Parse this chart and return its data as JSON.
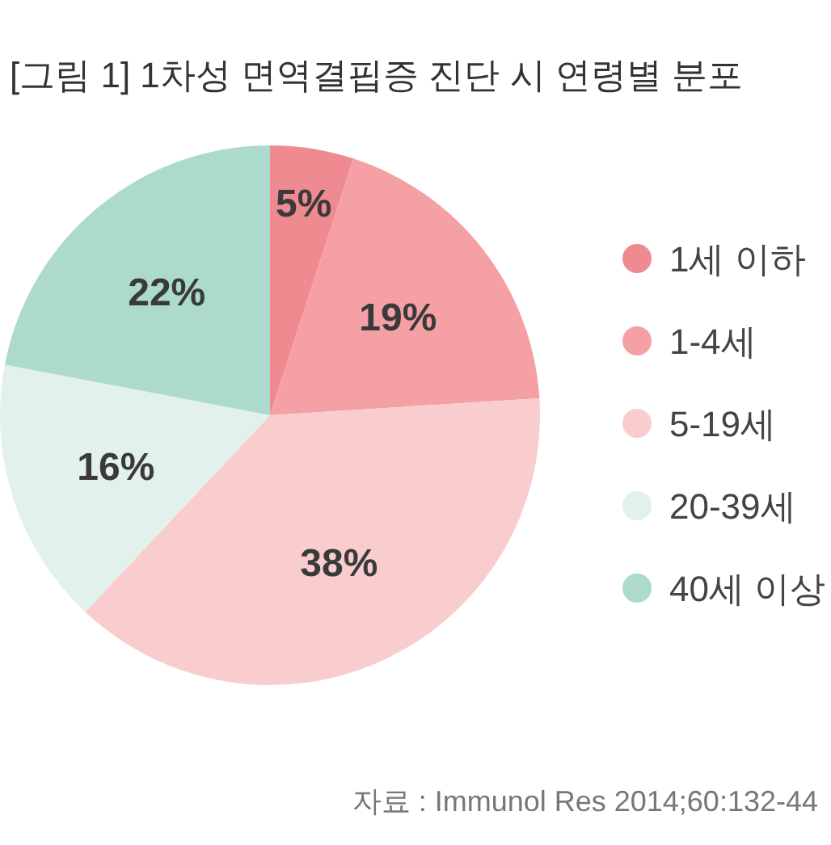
{
  "chart_data": {
    "type": "pie",
    "title": "[그림 1] 1차성 면역결핍증 진단 시 연령별 분포",
    "categories": [
      "1세 이하",
      "1-4세",
      "5-19세",
      "20-39세",
      "40세 이상"
    ],
    "values": [
      5,
      19,
      38,
      16,
      22
    ],
    "colors": [
      "#ef8a90",
      "#f4a0a4",
      "#f9cdcd",
      "#e2f1ec",
      "#acdacd"
    ],
    "value_labels": [
      "5%",
      "19%",
      "38%",
      "16%",
      "22%"
    ],
    "legend": "right",
    "annotations": [
      "자료 : Immunol Res 2014;60:132-44"
    ]
  }
}
